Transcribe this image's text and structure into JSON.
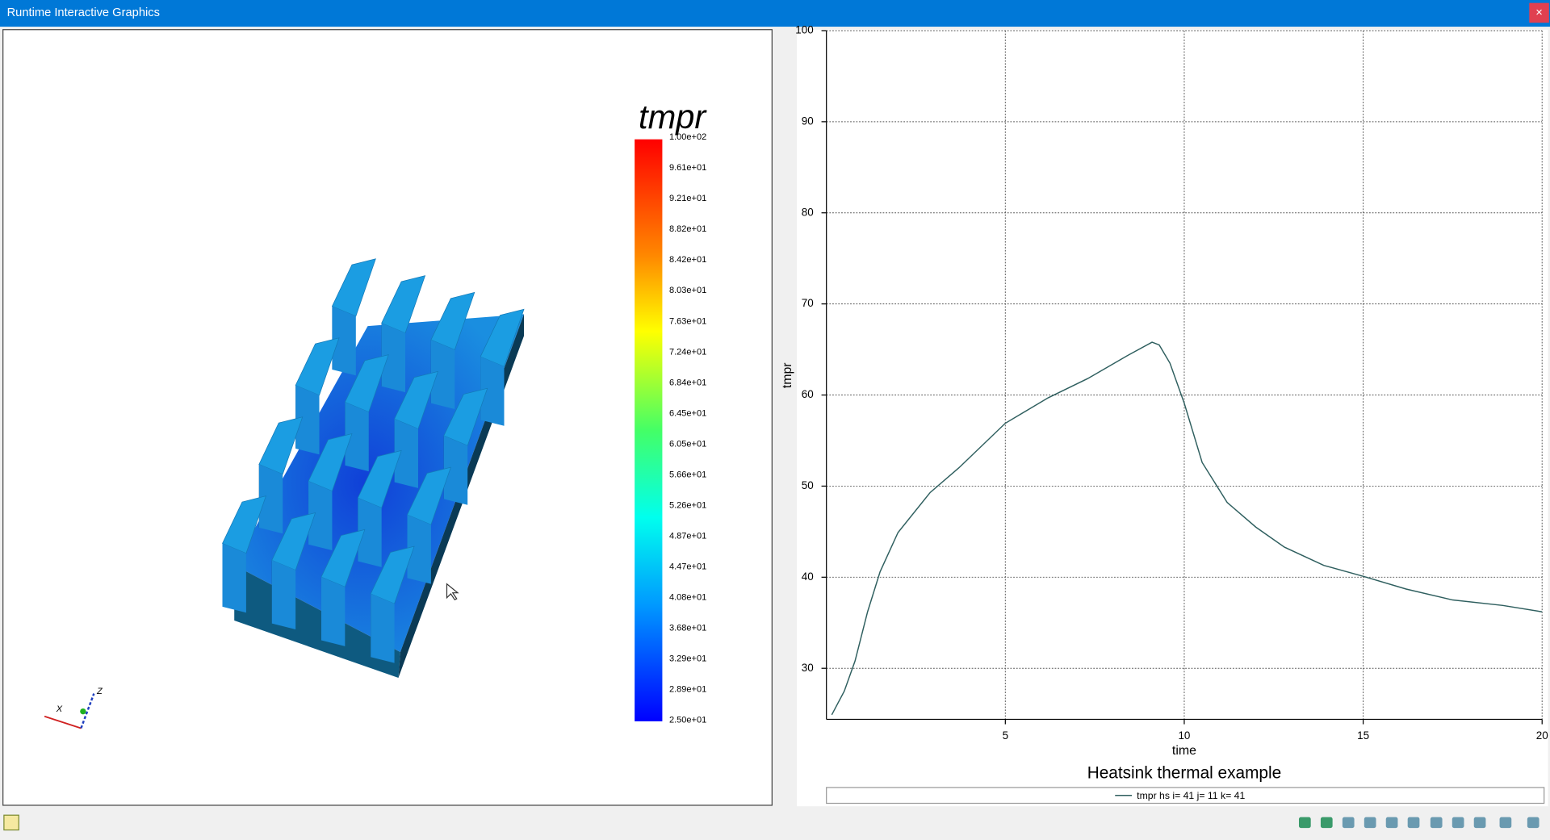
{
  "window": {
    "title": "Runtime Interactive Graphics"
  },
  "triad": {
    "labels": [
      "X",
      "Z"
    ]
  },
  "colorbar": {
    "title": "tmpr",
    "labels": [
      "1.00e+02",
      "9.61e+01",
      "9.21e+01",
      "8.82e+01",
      "8.42e+01",
      "8.03e+01",
      "7.63e+01",
      "7.24e+01",
      "6.84e+01",
      "6.45e+01",
      "6.05e+01",
      "5.66e+01",
      "5.26e+01",
      "4.87e+01",
      "4.47e+01",
      "4.08e+01",
      "3.68e+01",
      "3.29e+01",
      "2.89e+01",
      "2.50e+01"
    ]
  },
  "chart_data": {
    "type": "line",
    "title": "Heatsink thermal example",
    "x_label": "time",
    "y_label": "tmpr",
    "xlim": [
      0,
      20
    ],
    "ylim": [
      24.4,
      100
    ],
    "xticks": [
      5,
      10,
      15,
      20
    ],
    "yticks": [
      30,
      40,
      50,
      60,
      70,
      80,
      90,
      100
    ],
    "grid": true,
    "series": [
      {
        "name": "tmpr hs i= 41 j= 11 k= 41",
        "color": "#2f5f5f",
        "x": [
          0.15,
          0.5,
          0.8,
          1.15,
          1.5,
          2.0,
          2.9,
          3.7,
          5.0,
          6.2,
          7.3,
          8.4,
          9.1,
          9.3,
          9.6,
          10.0,
          10.5,
          11.2,
          12.0,
          12.8,
          13.9,
          15.0,
          16.2,
          17.5,
          18.9,
          20.0
        ],
        "values": [
          24.9,
          27.5,
          30.8,
          36.2,
          40.6,
          44.9,
          49.3,
          52.0,
          56.9,
          59.7,
          61.8,
          64.3,
          65.8,
          65.5,
          63.5,
          59.1,
          52.6,
          48.2,
          45.5,
          43.3,
          41.3,
          40.1,
          38.7,
          37.5,
          36.9,
          36.2
        ]
      }
    ]
  }
}
